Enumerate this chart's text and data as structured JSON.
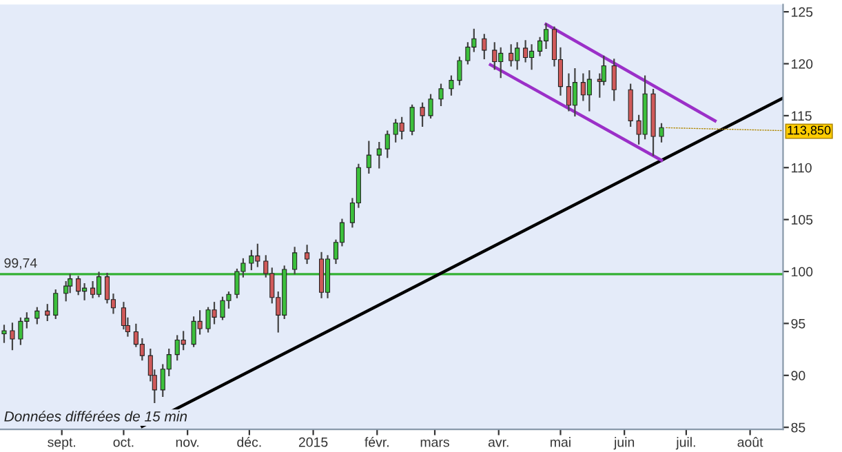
{
  "chart_data": {
    "type": "candlestick",
    "x": [
      "2014-08-04",
      "2014-08-08",
      "2014-08-12",
      "2014-08-15",
      "2014-08-20",
      "2014-08-25",
      "2014-08-29",
      "2014-09-03",
      "2014-09-05",
      "2014-09-09",
      "2014-09-12",
      "2014-09-16",
      "2014-09-19",
      "2014-09-23",
      "2014-09-26",
      "2014-10-01",
      "2014-10-03",
      "2014-10-07",
      "2014-10-10",
      "2014-10-14",
      "2014-10-16",
      "2014-10-20",
      "2014-10-23",
      "2014-10-27",
      "2014-10-30",
      "2014-11-04",
      "2014-11-07",
      "2014-11-11",
      "2014-11-14",
      "2014-11-18",
      "2014-11-21",
      "2014-11-25",
      "2014-11-28",
      "2014-12-02",
      "2014-12-05",
      "2014-12-09",
      "2014-12-12",
      "2014-12-15",
      "2014-12-18",
      "2014-12-23",
      "2014-12-29",
      "2015-01-05",
      "2015-01-08",
      "2015-01-12",
      "2015-01-15",
      "2015-01-20",
      "2015-01-23",
      "2015-01-28",
      "2015-02-02",
      "2015-02-06",
      "2015-02-10",
      "2015-02-13",
      "2015-02-18",
      "2015-02-23",
      "2015-02-27",
      "2015-03-04",
      "2015-03-09",
      "2015-03-13",
      "2015-03-17",
      "2015-03-20",
      "2015-03-25",
      "2015-03-30",
      "2015-04-02",
      "2015-04-07",
      "2015-04-10",
      "2015-04-14",
      "2015-04-17",
      "2015-04-21",
      "2015-04-24",
      "2015-04-28",
      "2015-05-01",
      "2015-05-05",
      "2015-05-08",
      "2015-05-12",
      "2015-05-15",
      "2015-05-20",
      "2015-05-22",
      "2015-05-27",
      "2015-06-04",
      "2015-06-08",
      "2015-06-11",
      "2015-06-15",
      "2015-06-19"
    ],
    "ohlc": [
      [
        94.0,
        94.8,
        93.2,
        94.3
      ],
      [
        94.3,
        95.0,
        92.5,
        93.5
      ],
      [
        93.5,
        95.5,
        93.0,
        95.2
      ],
      [
        95.2,
        96.0,
        94.6,
        95.5
      ],
      [
        95.5,
        96.5,
        95.0,
        96.2
      ],
      [
        96.2,
        96.8,
        95.3,
        95.8
      ],
      [
        95.8,
        98.2,
        95.5,
        97.9
      ],
      [
        97.9,
        99.0,
        97.2,
        98.6
      ],
      [
        98.6,
        99.7,
        98.0,
        99.3
      ],
      [
        99.3,
        99.5,
        97.8,
        98.1
      ],
      [
        98.1,
        98.8,
        97.3,
        98.4
      ],
      [
        98.4,
        99.0,
        97.5,
        97.8
      ],
      [
        97.8,
        99.9,
        97.6,
        99.5
      ],
      [
        99.5,
        99.8,
        97.0,
        97.3
      ],
      [
        97.3,
        97.8,
        96.0,
        96.5
      ],
      [
        96.5,
        97.0,
        94.5,
        94.8
      ],
      [
        94.8,
        95.5,
        93.8,
        94.2
      ],
      [
        94.2,
        94.9,
        92.8,
        93.0
      ],
      [
        93.0,
        93.5,
        91.5,
        91.9
      ],
      [
        91.9,
        92.5,
        89.5,
        90.0
      ],
      [
        90.0,
        90.5,
        87.4,
        88.6
      ],
      [
        88.6,
        91.0,
        88.0,
        90.6
      ],
      [
        90.6,
        92.5,
        90.0,
        92.0
      ],
      [
        92.0,
        93.8,
        91.5,
        93.4
      ],
      [
        93.4,
        94.2,
        92.5,
        93.0
      ],
      [
        93.0,
        95.6,
        92.8,
        95.2
      ],
      [
        95.2,
        96.2,
        94.0,
        94.5
      ],
      [
        94.5,
        96.5,
        94.2,
        96.3
      ],
      [
        96.3,
        97.0,
        95.0,
        95.6
      ],
      [
        95.6,
        97.5,
        95.4,
        97.2
      ],
      [
        97.2,
        98.0,
        96.5,
        97.8
      ],
      [
        97.8,
        100.2,
        97.5,
        100.0
      ],
      [
        100.0,
        101.2,
        99.5,
        100.8
      ],
      [
        100.8,
        102.0,
        100.2,
        101.5
      ],
      [
        101.5,
        102.6,
        100.5,
        101.0
      ],
      [
        101.0,
        101.5,
        99.5,
        99.8
      ],
      [
        99.8,
        100.3,
        97.0,
        97.5
      ],
      [
        97.5,
        98.0,
        94.2,
        95.8
      ],
      [
        95.8,
        100.5,
        95.5,
        100.2
      ],
      [
        100.2,
        102.3,
        99.8,
        101.8
      ],
      [
        101.8,
        102.5,
        100.8,
        101.2
      ],
      [
        101.2,
        101.8,
        97.5,
        98.0
      ],
      [
        98.0,
        101.5,
        97.5,
        101.2
      ],
      [
        101.2,
        103.0,
        100.8,
        102.8
      ],
      [
        102.8,
        105.0,
        102.5,
        104.7
      ],
      [
        104.7,
        107.0,
        104.3,
        106.6
      ],
      [
        106.6,
        110.3,
        106.2,
        110.0
      ],
      [
        110.0,
        112.5,
        109.5,
        111.2
      ],
      [
        111.2,
        112.4,
        110.0,
        111.8
      ],
      [
        111.8,
        113.5,
        111.0,
        113.2
      ],
      [
        113.2,
        114.6,
        112.5,
        114.3
      ],
      [
        114.3,
        114.8,
        112.8,
        113.5
      ],
      [
        113.5,
        116.0,
        113.2,
        115.8
      ],
      [
        115.8,
        116.2,
        114.0,
        115.0
      ],
      [
        115.0,
        117.0,
        114.8,
        116.6
      ],
      [
        116.6,
        118.0,
        116.0,
        117.6
      ],
      [
        117.6,
        118.8,
        117.0,
        118.4
      ],
      [
        118.4,
        120.6,
        118.0,
        120.3
      ],
      [
        120.3,
        122.0,
        120.0,
        121.6
      ],
      [
        121.6,
        123.3,
        121.2,
        122.4
      ],
      [
        122.4,
        122.8,
        120.5,
        121.3
      ],
      [
        121.3,
        122.0,
        119.5,
        120.2
      ],
      [
        120.2,
        121.5,
        118.7,
        121.0
      ],
      [
        121.0,
        121.8,
        119.8,
        120.3
      ],
      [
        120.3,
        122.0,
        119.5,
        121.5
      ],
      [
        121.5,
        122.2,
        120.2,
        120.6
      ],
      [
        120.6,
        121.8,
        119.5,
        121.2
      ],
      [
        121.2,
        122.5,
        120.8,
        122.2
      ],
      [
        122.2,
        123.8,
        121.5,
        123.3
      ],
      [
        123.3,
        123.5,
        119.8,
        120.4
      ],
      [
        120.4,
        121.5,
        117.0,
        117.8
      ],
      [
        117.8,
        119.0,
        115.5,
        116.0
      ],
      [
        116.0,
        119.5,
        115.0,
        118.2
      ],
      [
        118.2,
        119.0,
        116.5,
        117.0
      ],
      [
        117.0,
        119.3,
        115.5,
        118.5
      ],
      [
        118.5,
        119.0,
        116.8,
        118.3
      ],
      [
        118.3,
        120.7,
        118.0,
        119.8
      ],
      [
        119.8,
        120.4,
        116.5,
        117.5
      ],
      [
        117.5,
        118.0,
        114.0,
        114.5
      ],
      [
        114.5,
        115.0,
        112.3,
        113.2
      ],
      [
        113.2,
        118.8,
        112.8,
        117.1
      ],
      [
        117.1,
        117.5,
        111.2,
        113.0
      ],
      [
        113.0,
        114.2,
        112.5,
        113.85
      ]
    ],
    "colors": [
      "#3cc03c",
      "#d05a5a",
      "#3cc03c",
      "#3cc03c",
      "#3cc03c",
      "#d05a5a",
      "#3cc03c",
      "#3cc03c",
      "#3cc03c",
      "#d05a5a",
      "#3cc03c",
      "#d05a5a",
      "#3cc03c",
      "#d05a5a",
      "#d05a5a",
      "#d05a5a",
      "#d05a5a",
      "#d05a5a",
      "#d05a5a",
      "#d05a5a",
      "#d05a5a",
      "#3cc03c",
      "#3cc03c",
      "#3cc03c",
      "#d05a5a",
      "#3cc03c",
      "#d05a5a",
      "#3cc03c",
      "#d05a5a",
      "#3cc03c",
      "#3cc03c",
      "#3cc03c",
      "#3cc03c",
      "#3cc03c",
      "#d05a5a",
      "#d05a5a",
      "#d05a5a",
      "#d05a5a",
      "#3cc03c",
      "#3cc03c",
      "#d05a5a",
      "#d05a5a",
      "#3cc03c",
      "#3cc03c",
      "#3cc03c",
      "#3cc03c",
      "#3cc03c",
      "#3cc03c",
      "#3cc03c",
      "#3cc03c",
      "#3cc03c",
      "#d05a5a",
      "#3cc03c",
      "#d05a5a",
      "#3cc03c",
      "#3cc03c",
      "#3cc03c",
      "#3cc03c",
      "#3cc03c",
      "#3cc03c",
      "#d05a5a",
      "#d05a5a",
      "#3cc03c",
      "#d05a5a",
      "#3cc03c",
      "#d05a5a",
      "#3cc03c",
      "#3cc03c",
      "#3cc03c",
      "#d05a5a",
      "#d05a5a",
      "#d05a5a",
      "#3cc03c",
      "#d05a5a",
      "#3cc03c",
      "#d05a5a",
      "#3cc03c",
      "#d05a5a",
      "#d05a5a",
      "#d05a5a",
      "#3cc03c",
      "#d05a5a",
      "#3cc03c"
    ],
    "series": [
      {
        "type": "line",
        "color": "#000000",
        "x": [
          "2014-10-10",
          "2015-08-17"
        ],
        "values": [
          85.1,
          116.7
        ]
      },
      {
        "type": "line",
        "color": "#9b30c8",
        "x": [
          "2015-04-24",
          "2015-07-15"
        ],
        "values": [
          123.8,
          114.5
        ]
      },
      {
        "type": "line",
        "color": "#9b30c8",
        "x": [
          "2015-03-28",
          "2015-06-19"
        ],
        "values": [
          119.9,
          110.7
        ]
      }
    ],
    "ref_lines": [
      {
        "axis": "y",
        "value": 99.74,
        "label": "99,74",
        "color": "#33b033"
      }
    ],
    "annotations": [
      {
        "text": "113,850",
        "x": "2015-06-19",
        "y": 113.85
      },
      "Données différées de 15 min"
    ],
    "xlim": [
      "2014-08-02",
      "2015-08-17"
    ],
    "xticks": [
      {
        "value": "2014-09-01",
        "label": "sept."
      },
      {
        "value": "2014-10-01",
        "label": "oct."
      },
      {
        "value": "2014-11-01",
        "label": "nov."
      },
      {
        "value": "2014-12-01",
        "label": "déc."
      },
      {
        "value": "2015-01-01",
        "label": "2015"
      },
      {
        "value": "2015-02-01",
        "label": "févr."
      },
      {
        "value": "2015-03-01",
        "label": "mars"
      },
      {
        "value": "2015-04-01",
        "label": "avr."
      },
      {
        "value": "2015-05-01",
        "label": "mai"
      },
      {
        "value": "2015-06-01",
        "label": "juin"
      },
      {
        "value": "2015-07-01",
        "label": "juil."
      },
      {
        "value": "2015-08-01",
        "label": "août"
      }
    ],
    "ylim": [
      84.8,
      125.7
    ],
    "yticks": [
      85,
      90,
      95,
      100,
      105,
      110,
      115,
      120,
      125
    ],
    "grid": false,
    "legend": false
  }
}
